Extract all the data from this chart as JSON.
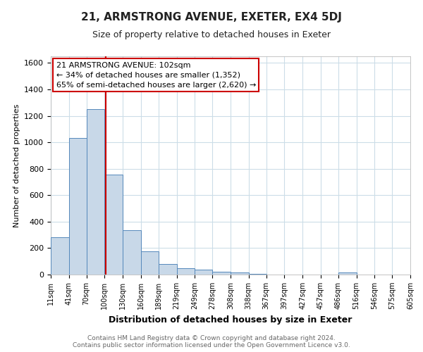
{
  "title": "21, ARMSTRONG AVENUE, EXETER, EX4 5DJ",
  "subtitle": "Size of property relative to detached houses in Exeter",
  "xlabel": "Distribution of detached houses by size in Exeter",
  "ylabel": "Number of detached properties",
  "bin_edges": [
    11,
    41,
    70,
    100,
    130,
    160,
    189,
    219,
    249,
    278,
    308,
    338,
    367,
    397,
    427,
    457,
    486,
    516,
    546,
    575,
    605
  ],
  "bar_heights": [
    280,
    1035,
    1250,
    755,
    335,
    175,
    80,
    50,
    35,
    20,
    15,
    5,
    0,
    0,
    0,
    0,
    15,
    0,
    0,
    0
  ],
  "bar_color": "#c8d8e8",
  "bar_edge_color": "#5588bb",
  "vline_x": 102,
  "vline_color": "#cc0000",
  "annotation_text": "21 ARMSTRONG AVENUE: 102sqm\n← 34% of detached houses are smaller (1,352)\n65% of semi-detached houses are larger (2,620) →",
  "annotation_box_color": "#cc0000",
  "ylim": [
    0,
    1650
  ],
  "yticks": [
    0,
    200,
    400,
    600,
    800,
    1000,
    1200,
    1400,
    1600
  ],
  "tick_labels": [
    "11sqm",
    "41sqm",
    "70sqm",
    "100sqm",
    "130sqm",
    "160sqm",
    "189sqm",
    "219sqm",
    "249sqm",
    "278sqm",
    "308sqm",
    "338sqm",
    "367sqm",
    "397sqm",
    "427sqm",
    "457sqm",
    "486sqm",
    "516sqm",
    "546sqm",
    "575sqm",
    "605sqm"
  ],
  "footer_text": "Contains HM Land Registry data © Crown copyright and database right 2024.\nContains public sector information licensed under the Open Government Licence v3.0.",
  "background_color": "#ffffff",
  "grid_color": "#ccdde8",
  "title_fontsize": 11,
  "subtitle_fontsize": 9,
  "xlabel_fontsize": 9,
  "ylabel_fontsize": 8,
  "tick_fontsize": 7,
  "ytick_fontsize": 8,
  "footer_fontsize": 6.5,
  "annotation_fontsize": 8
}
